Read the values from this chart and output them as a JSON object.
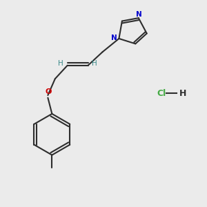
{
  "bg_color": "#ebebeb",
  "bond_color": "#2d2d2d",
  "N_color": "#0000cc",
  "O_color": "#cc0000",
  "H_color": "#3a8a8a",
  "Cl_color": "#44aa44",
  "figsize": [
    3.0,
    3.0
  ],
  "dpi": 100,
  "xlim": [
    0,
    10
  ],
  "ylim": [
    0,
    10
  ],
  "lw": 1.5
}
